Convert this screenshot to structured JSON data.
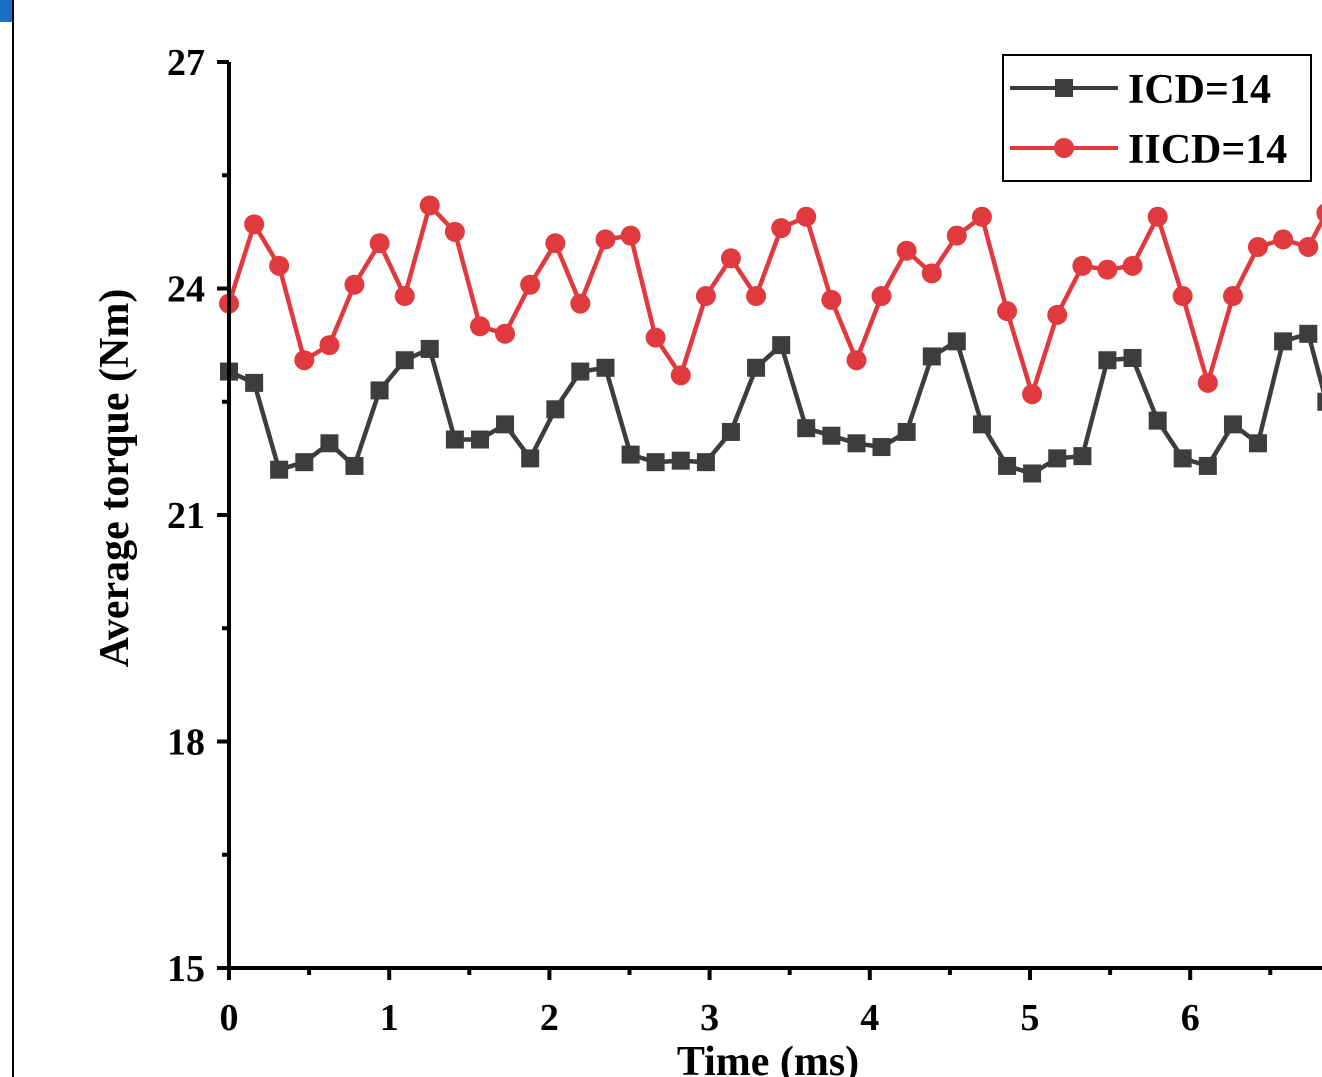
{
  "chart_data": {
    "type": "line",
    "title": "",
    "xlabel": "Time (ms)",
    "ylabel": "Average torque (Nm)",
    "xlim": [
      0,
      6.85
    ],
    "ylim": [
      15,
      27
    ],
    "xticks": [
      0,
      1,
      2,
      3,
      4,
      5,
      6
    ],
    "yticks": [
      15,
      18,
      21,
      24,
      27
    ],
    "grid": false,
    "legend_position": "top-right",
    "x": [
      0,
      0.157,
      0.313,
      0.47,
      0.627,
      0.783,
      0.94,
      1.097,
      1.253,
      1.41,
      1.567,
      1.723,
      1.88,
      2.037,
      2.193,
      2.35,
      2.507,
      2.663,
      2.82,
      2.977,
      3.133,
      3.29,
      3.447,
      3.603,
      3.76,
      3.917,
      4.073,
      4.23,
      4.387,
      4.543,
      4.7,
      4.857,
      5.013,
      5.17,
      5.327,
      5.483,
      5.64,
      5.797,
      5.953,
      6.11,
      6.267,
      6.423,
      6.58,
      6.737,
      6.85
    ],
    "series": [
      {
        "name": "ICD=14",
        "color": "#3d3d3d",
        "marker": "square",
        "values": [
          22.9,
          22.75,
          21.6,
          21.7,
          21.95,
          21.65,
          22.65,
          23.05,
          23.2,
          22.0,
          22.0,
          22.2,
          21.75,
          22.4,
          22.9,
          22.95,
          21.8,
          21.7,
          21.72,
          21.7,
          22.1,
          22.95,
          23.25,
          22.15,
          22.05,
          21.95,
          21.9,
          22.1,
          23.1,
          23.3,
          22.2,
          21.65,
          21.55,
          21.75,
          21.78,
          23.05,
          23.08,
          22.25,
          21.75,
          21.65,
          22.2,
          21.95,
          23.3,
          23.4,
          22.5
        ]
      },
      {
        "name": "IICD=14",
        "color": "#e03a3e",
        "marker": "circle",
        "values": [
          23.8,
          24.85,
          24.3,
          23.05,
          23.25,
          24.05,
          24.6,
          23.9,
          25.1,
          24.75,
          23.5,
          23.4,
          24.05,
          24.6,
          23.8,
          24.65,
          24.7,
          23.35,
          22.85,
          23.9,
          24.4,
          23.9,
          24.8,
          24.95,
          23.85,
          23.05,
          23.9,
          24.5,
          24.2,
          24.7,
          24.95,
          23.7,
          22.6,
          23.65,
          24.3,
          24.25,
          24.3,
          24.95,
          23.9,
          22.75,
          23.9,
          24.55,
          24.65,
          24.55,
          25.0
        ]
      }
    ]
  }
}
